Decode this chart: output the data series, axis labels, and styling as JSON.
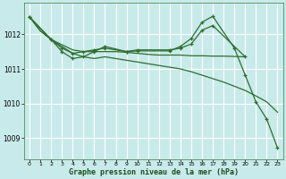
{
  "title": "Graphe pression niveau de la mer (hPa)",
  "bg_color": "#c8eaea",
  "grid_color": "#ffffff",
  "line_color": "#2d6e2d",
  "xlim_min": -0.5,
  "xlim_max": 23.5,
  "ylim_min": 1008.4,
  "ylim_max": 1012.9,
  "yticks": [
    1009,
    1010,
    1011,
    1012
  ],
  "xticks": [
    0,
    1,
    2,
    3,
    4,
    5,
    6,
    7,
    8,
    9,
    10,
    11,
    12,
    13,
    14,
    15,
    16,
    17,
    18,
    19,
    20,
    21,
    22,
    23
  ],
  "lines": [
    {
      "x": [
        0,
        1,
        2,
        3,
        4,
        5,
        6,
        7,
        8,
        9,
        10,
        11,
        12,
        13,
        14,
        15,
        16,
        17,
        18,
        19,
        20
      ],
      "y": [
        1012.5,
        1012.1,
        1011.85,
        1011.7,
        1011.55,
        1011.5,
        1011.5,
        1011.5,
        1011.5,
        1011.48,
        1011.45,
        1011.42,
        1011.4,
        1011.4,
        1011.4,
        1011.38,
        1011.38,
        1011.37,
        1011.37,
        1011.36,
        1011.35
      ],
      "has_markers": false
    },
    {
      "x": [
        0,
        1,
        2,
        3,
        4,
        5,
        6,
        7,
        8,
        9,
        10,
        11,
        12,
        13,
        14,
        15,
        16,
        17,
        18,
        19,
        20,
        21,
        22,
        23
      ],
      "y": [
        1012.5,
        1012.1,
        1011.85,
        1011.65,
        1011.45,
        1011.35,
        1011.3,
        1011.35,
        1011.3,
        1011.25,
        1011.2,
        1011.15,
        1011.1,
        1011.05,
        1011.0,
        1010.92,
        1010.82,
        1010.72,
        1010.62,
        1010.5,
        1010.38,
        1010.22,
        1010.05,
        1009.75
      ],
      "has_markers": false
    },
    {
      "x": [
        0,
        2,
        3,
        4,
        5,
        6,
        7,
        9,
        10,
        13,
        14,
        15,
        16,
        17,
        20
      ],
      "y": [
        1012.5,
        1011.85,
        1011.6,
        1011.45,
        1011.5,
        1011.55,
        1011.6,
        1011.5,
        1011.55,
        1011.55,
        1011.6,
        1011.72,
        1012.12,
        1012.25,
        1011.35
      ],
      "has_markers": true
    },
    {
      "x": [
        0,
        2,
        3,
        4,
        5,
        6,
        7,
        9,
        10,
        13,
        14,
        15,
        16,
        17,
        19,
        20,
        21,
        22,
        23
      ],
      "y": [
        1012.5,
        1011.85,
        1011.5,
        1011.3,
        1011.35,
        1011.5,
        1011.65,
        1011.5,
        1011.52,
        1011.52,
        1011.65,
        1011.88,
        1012.35,
        1012.52,
        1011.6,
        1010.82,
        1010.05,
        1009.55,
        1008.72
      ],
      "has_markers": true
    }
  ]
}
